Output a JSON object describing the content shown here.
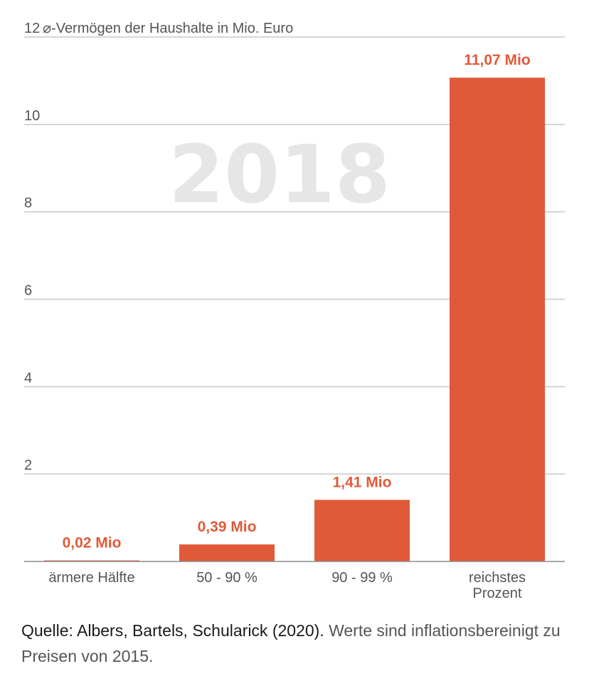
{
  "chart_data": {
    "type": "bar",
    "ylabel": "⌀-Vermögen der Haushalte in Mio. Euro",
    "watermark_year": "2018",
    "ylim": [
      0,
      12
    ],
    "yticks": [
      2,
      4,
      6,
      8,
      10,
      12
    ],
    "grid": true,
    "categories": [
      [
        "ärmere Hälfte"
      ],
      [
        "50 - 90 %"
      ],
      [
        "90 - 99 %"
      ],
      [
        "reichstes",
        "Prozent"
      ]
    ],
    "values": [
      0.02,
      0.39,
      1.41,
      11.07
    ],
    "value_labels": [
      "0,02 Mio",
      "0,39 Mio",
      "1,41 Mio",
      "11,07 Mio"
    ],
    "bar_color": "#e05a3a",
    "label_color": "#e05a3a"
  },
  "footnote": {
    "source": "Quelle: Albers, Bartels, Schularick (2020).",
    "note": " Werte sind inflationsbereinigt zu Preisen von 2015."
  }
}
